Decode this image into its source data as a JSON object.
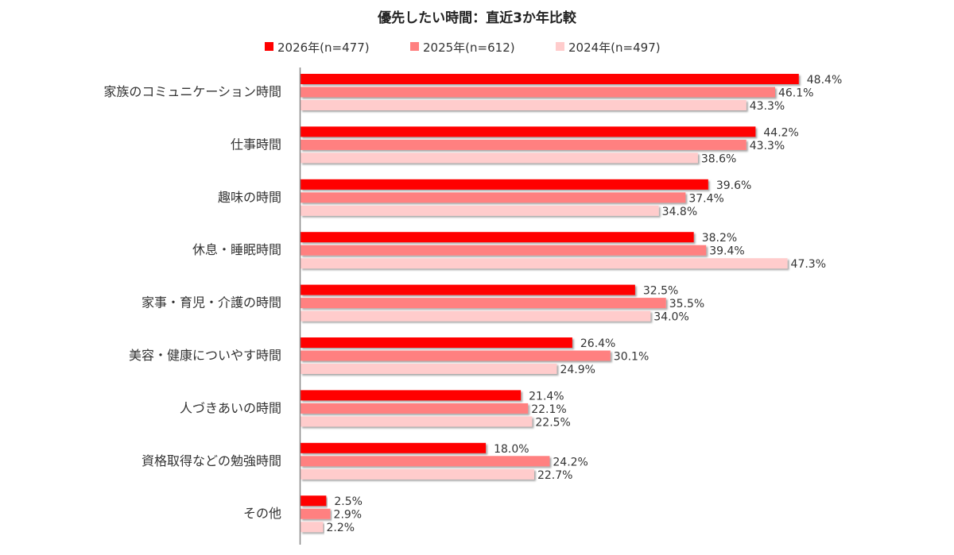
{
  "chart_data": {
    "type": "bar",
    "orientation": "horizontal",
    "title": "優先したい時間：直近3か年比較",
    "categories": [
      "家族のコミュニケーション時間",
      "仕事時間",
      "趣味の時間",
      "休息・睡眠時間",
      "家事・育児・介護の時間",
      "美容・健康についやす時間",
      "人づきあいの時間",
      "資格取得などの勉強時間",
      "その他"
    ],
    "series": [
      {
        "name": "2026年(n=477)",
        "color": "#FF0000",
        "values": [
          48.4,
          44.2,
          39.6,
          38.2,
          32.5,
          26.4,
          21.4,
          18.0,
          2.5
        ]
      },
      {
        "name": "2025年(n=612)",
        "color": "#FF8080",
        "values": [
          46.1,
          43.3,
          37.4,
          39.4,
          35.5,
          30.1,
          22.1,
          24.2,
          2.9
        ]
      },
      {
        "name": "2024年(n=497)",
        "color": "#FFCCCC",
        "values": [
          43.3,
          38.6,
          34.8,
          47.3,
          34.0,
          24.9,
          22.5,
          22.7,
          2.2
        ]
      }
    ],
    "value_suffix": "%",
    "xlim": [
      0,
      50
    ],
    "grid": false,
    "legend_position": "top"
  }
}
